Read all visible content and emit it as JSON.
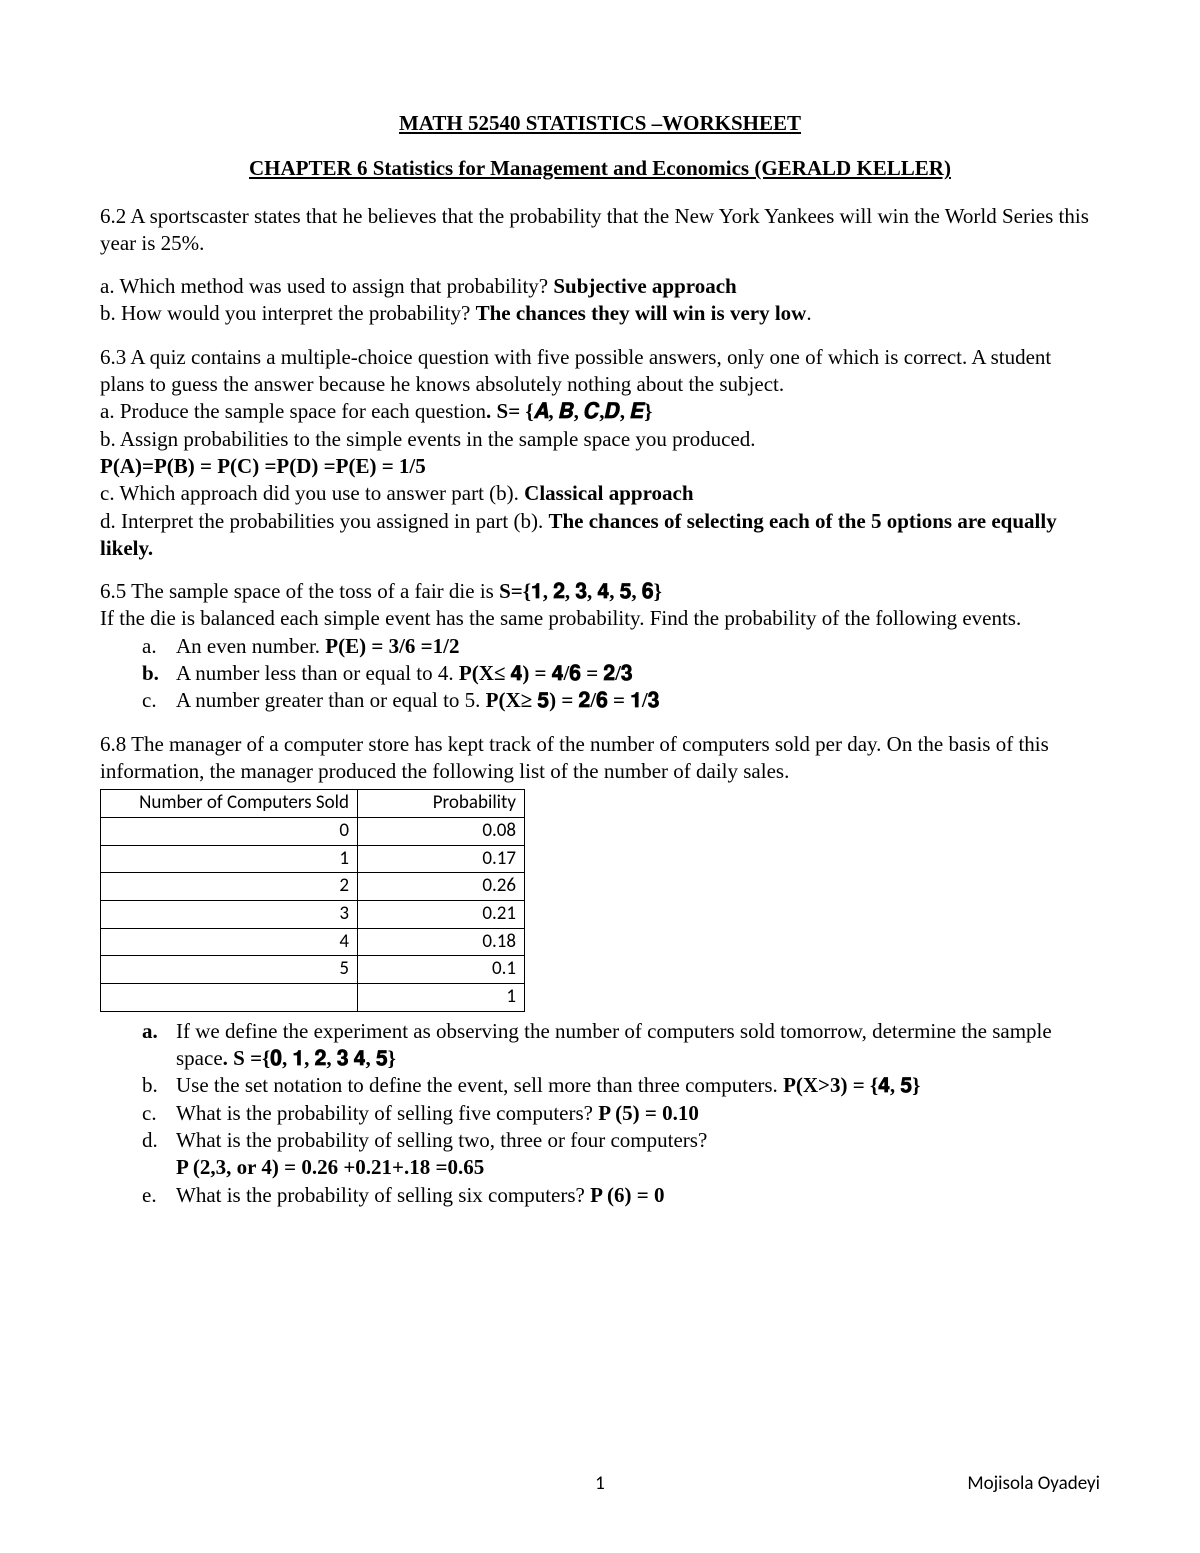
{
  "title": "MATH 52540 STATISTICS –WORKSHEET",
  "subtitle": "CHAPTER 6 Statistics for Management and Economics (GERALD KELLER)",
  "q62": {
    "intro": "6.2 A sportscaster states that he believes that the probability that the New York Yankees will win the World Series this year is 25%.",
    "a_text": "a. Which method was used to assign that probability? ",
    "a_ans": "Subjective approach",
    "b_text": "b. How would you interpret the probability? ",
    "b_ans": "The chances they will win is very low"
  },
  "q63": {
    "intro": "6.3 A quiz contains a multiple-choice question with five possible answers, only one of which is correct. A student plans to guess the answer because he knows absolutely nothing about the subject.",
    "a_text": "a.  Produce the sample space for each question",
    "a_ans": ". S= {𝑨, 𝑩, 𝑪,𝑫, 𝑬}",
    "b_text": "b. Assign probabilities to the simple events in the sample space you produced.",
    "b_ans": "P(A)=P(B) = P(C) =P(D) =P(E) = 1/5",
    "c_text": "c. Which approach did you use to answer part (b). ",
    "c_ans": "Classical approach",
    "d_text": "d. Interpret the probabilities you assigned in part (b). ",
    "d_ans": "The chances of selecting each of the 5 options are equally likely."
  },
  "q65": {
    "line1a": "6.5 The sample space of the toss of a fair die is ",
    "line1b": "S={𝟏, 𝟐, 𝟑, 𝟒, 𝟓, 𝟔}",
    "line2": "If the die is balanced each simple event has the same probability. Find the probability of the following events.",
    "a_text": "An even number. ",
    "a_ans": "P(E) = 3/6 =1/2",
    "b_text": "A number less than or equal to 4. ",
    "b_ans": "P(X≤ 𝟒) = 𝟒/𝟔 = 𝟐/𝟑",
    "c_text": "A number greater than or equal to 5. ",
    "c_ans": "P(X≥ 𝟓) = 𝟐/𝟔 = 𝟏/𝟑"
  },
  "q68": {
    "intro": "6.8   The manager of a computer store has kept track of the number of computers sold per day. On the basis of this information, the manager produced the following list of the number of daily sales.",
    "table": {
      "header1": "Number of Computers Sold",
      "header2": "Probability",
      "rows": [
        [
          "0",
          "0.08"
        ],
        [
          "1",
          "0.17"
        ],
        [
          "2",
          "0.26"
        ],
        [
          "3",
          "0.21"
        ],
        [
          "4",
          "0.18"
        ],
        [
          "5",
          "0.1"
        ],
        [
          "",
          "1"
        ]
      ]
    },
    "a_text": "If we define the experiment as observing the number of computers sold tomorrow, determine the sample space",
    "a_ans": ". S ={𝟎, 𝟏, 𝟐, 𝟑 𝟒, 𝟓}",
    "b_text": "Use the set notation to define the event, sell more than three computers. ",
    "b_ans": "P(X>3) = {𝟒, 𝟓}",
    "c_text": "What is the probability of selling five computers? ",
    "c_ans": "P (5) = 0.10",
    "d_text": "What is the probability of selling two, three or four computers?",
    "d_ans": " P (2,3, or 4) = 0.26 +0.21+.18 =0.65",
    "e_text": "What is the probability of selling six computers? ",
    "e_ans": "P (6) = 0"
  },
  "footer": {
    "page": "1",
    "author": "Mojisola Oyadeyi"
  }
}
